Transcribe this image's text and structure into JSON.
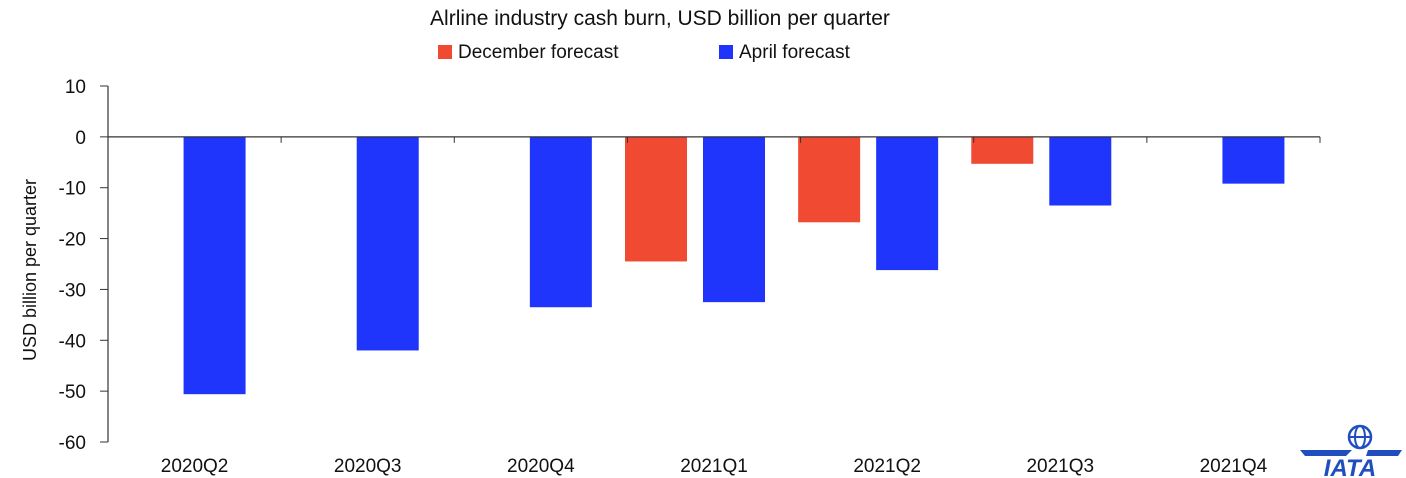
{
  "chart_data": {
    "type": "bar",
    "title": "Alrline industry cash burn, USD billion per quarter",
    "ylabel": "USD billion per quarter",
    "xlabel": "",
    "ylim": [
      -60,
      10
    ],
    "yticks": [
      10,
      0,
      -10,
      -20,
      -30,
      -40,
      -50,
      -60
    ],
    "categories": [
      "2020Q2",
      "2020Q3",
      "2020Q4",
      "2021Q1",
      "2021Q2",
      "2021Q3",
      "2021Q4"
    ],
    "series": [
      {
        "name": "December forecast",
        "color": "#f04a32",
        "values": [
          null,
          null,
          null,
          -24.5,
          -16.8,
          -5.3,
          null
        ]
      },
      {
        "name": "April forecast",
        "color": "#1f35fb",
        "values": [
          -50.6,
          -42.0,
          -33.5,
          -32.5,
          -26.2,
          -13.5,
          -9.2
        ]
      }
    ],
    "legend_position": "top-center",
    "grid": false
  },
  "logo": {
    "text": "IATA",
    "icon": "globe-icon"
  }
}
